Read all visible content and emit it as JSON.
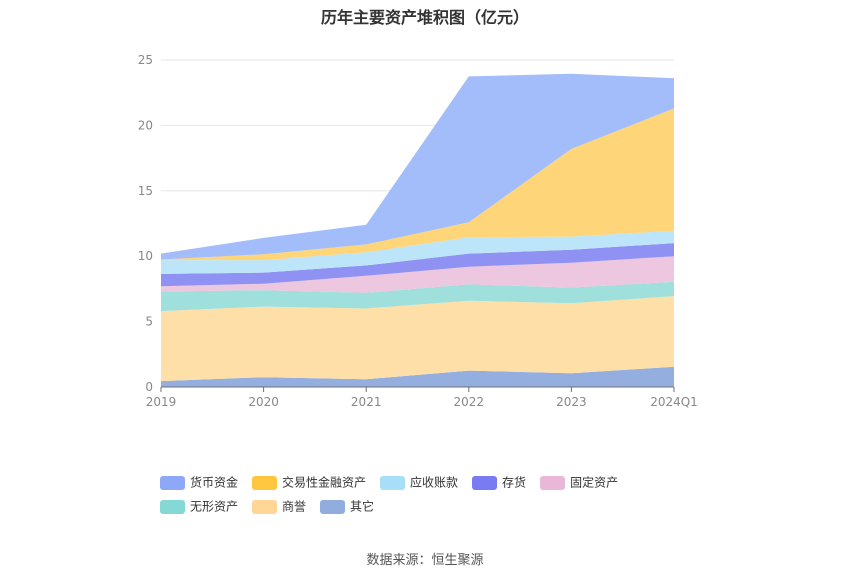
{
  "chart_data": {
    "type": "area",
    "stacked": true,
    "title": "历年主要资产堆积图（亿元）",
    "categories": [
      "2019",
      "2020",
      "2021",
      "2022",
      "2023",
      "2024Q1"
    ],
    "ylim": [
      0,
      25
    ],
    "yticks": [
      "0",
      "5",
      "10",
      "15",
      "20",
      "25"
    ],
    "grid": true,
    "legend_position": "bottom",
    "series": [
      {
        "name": "其它",
        "color": "#93AEDF",
        "values": [
          0.45,
          0.75,
          0.6,
          1.25,
          1.05,
          1.55
        ]
      },
      {
        "name": "商誉",
        "color": "#FFDFA8",
        "values": [
          5.35,
          5.4,
          5.4,
          5.35,
          5.35,
          5.4
        ]
      },
      {
        "name": "无形资产",
        "color": "#9FE0DD",
        "values": [
          1.5,
          1.25,
          1.2,
          1.25,
          1.2,
          1.1
        ]
      },
      {
        "name": "固定资产",
        "color": "#EDC6DF",
        "values": [
          0.4,
          0.5,
          1.3,
          1.35,
          1.9,
          1.95
        ]
      },
      {
        "name": "存货",
        "color": "#8F92F2",
        "values": [
          0.95,
          0.85,
          0.8,
          1.0,
          1.0,
          1.0
        ]
      },
      {
        "name": "应收账款",
        "color": "#BDE5F9",
        "values": [
          1.05,
          0.95,
          1.0,
          1.25,
          1.0,
          0.95
        ]
      },
      {
        "name": "交易性金融资产",
        "color": "#FFD57A",
        "values": [
          0.05,
          0.45,
          0.6,
          1.15,
          6.7,
          9.35
        ]
      },
      {
        "name": "货币资金",
        "color": "#A3BCFA",
        "values": [
          0.45,
          1.25,
          1.5,
          11.15,
          5.75,
          2.3
        ]
      }
    ],
    "legend": [
      {
        "name": "货币资金",
        "color": "#8EA8F8"
      },
      {
        "name": "交易性金融资产",
        "color": "#FFC73F"
      },
      {
        "name": "应收账款",
        "color": "#A9DEF9"
      },
      {
        "name": "存货",
        "color": "#787BF1"
      },
      {
        "name": "固定资产",
        "color": "#E9B8D8"
      },
      {
        "name": "无形资产",
        "color": "#86D8D6"
      },
      {
        "name": "商誉",
        "color": "#FFD696"
      },
      {
        "name": "其它",
        "color": "#91ADDE"
      }
    ]
  },
  "source_text": "数据来源：恒生聚源"
}
